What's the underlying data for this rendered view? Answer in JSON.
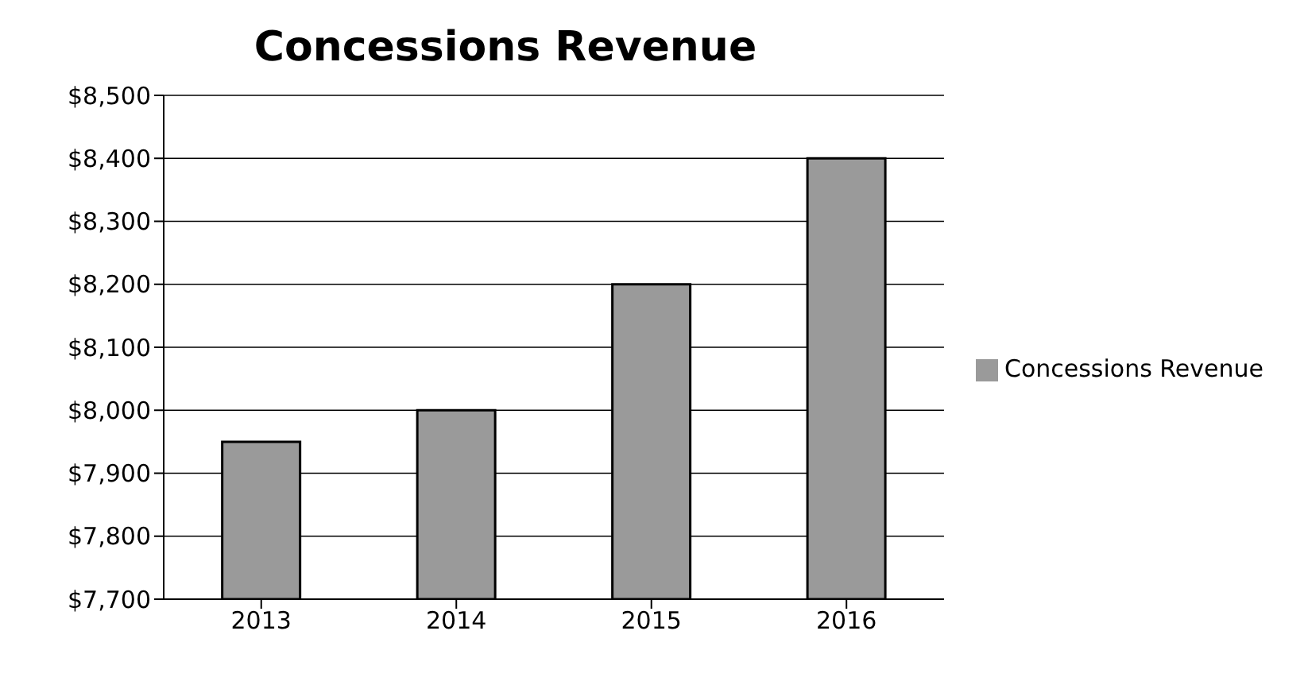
{
  "chart_data": {
    "type": "bar",
    "title": "Concessions Revenue",
    "categories": [
      "2013",
      "2014",
      "2015",
      "2016"
    ],
    "series": [
      {
        "name": "Concessions Revenue",
        "color": "#9a9a9a",
        "values": [
          7950,
          8000,
          8200,
          8400
        ]
      }
    ],
    "ylim": [
      7700,
      8500
    ],
    "yticks": [
      {
        "value": 7700,
        "label": "$7,700"
      },
      {
        "value": 7800,
        "label": "$7,800"
      },
      {
        "value": 7900,
        "label": "$7,900"
      },
      {
        "value": 8000,
        "label": "$8,000"
      },
      {
        "value": 8100,
        "label": "$8,100"
      },
      {
        "value": 8200,
        "label": "$8,200"
      },
      {
        "value": 8300,
        "label": "$8,300"
      },
      {
        "value": 8400,
        "label": "$8,400"
      },
      {
        "value": 8500,
        "label": "$8,500"
      }
    ],
    "grid": "y",
    "legend": "right"
  }
}
